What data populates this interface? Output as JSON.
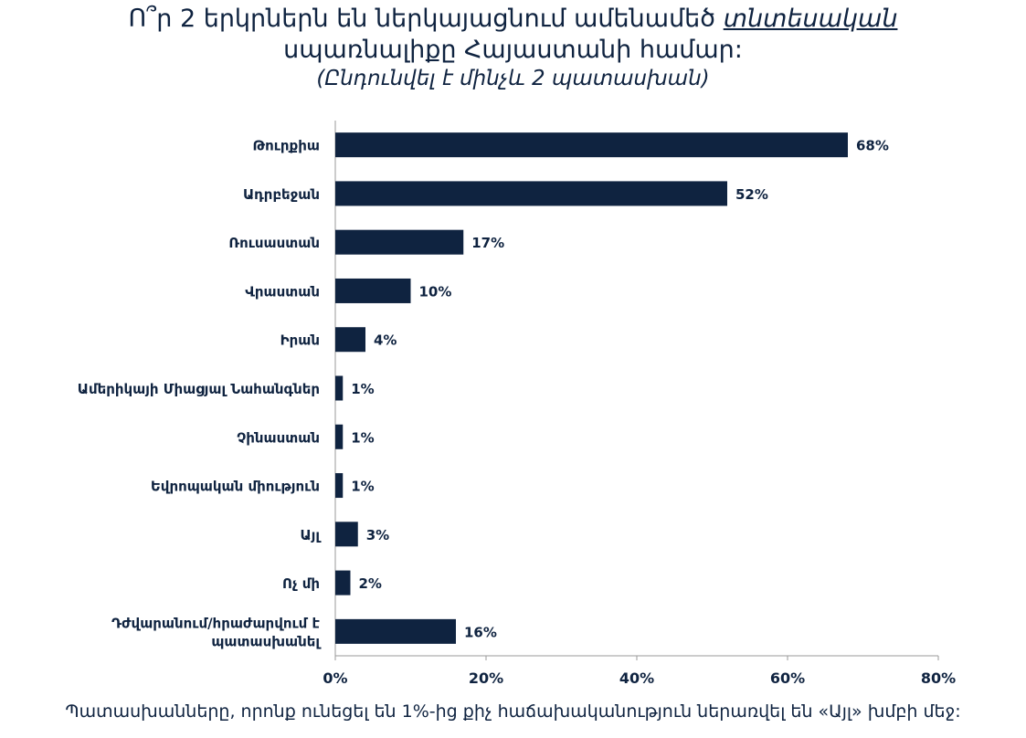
{
  "title": {
    "line1_before": "Ո՞ր 2 երկրներն են ներկայացնում ամենամեծ ",
    "line1_emphasis": "տնտեսական",
    "line2": "սպառնալիքը Հայաստանի համար:",
    "subtitle": "(Ընդունվել է մինչև  2 պատասխան)"
  },
  "footnote": "Պատասխանները, որոնք ունեցել են 1%-ից քիչ հաճախականություն ներառվել են «Այլ» խմբի մեջ:",
  "colors": {
    "bar": "#0f2340",
    "text": "#0f2340",
    "axis": "#9a9a9a"
  },
  "chart_data": {
    "type": "bar",
    "orientation": "horizontal",
    "categories": [
      "Թուրքիա",
      "Ադրբեջան",
      "Ռուսաստան",
      "Վրաստան",
      "Իրան",
      "Ամերիկայի Միացյալ Նահանգներ",
      "Չինաստան",
      "Եվրոպական միություն",
      "Այլ",
      "Ոչ մի",
      "Դժվարանում/հրաժարվում է պատասխանել"
    ],
    "values": [
      68,
      52,
      17,
      10,
      4,
      1,
      1,
      1,
      3,
      2,
      16
    ],
    "value_labels": [
      "68%",
      "52%",
      "17%",
      "10%",
      "4%",
      "1%",
      "1%",
      "1%",
      "3%",
      "2%",
      "16%"
    ],
    "xlim": [
      0,
      80
    ],
    "xticks": [
      0,
      20,
      40,
      60,
      80
    ],
    "xtick_labels": [
      "0%",
      "20%",
      "40%",
      "60%",
      "80%"
    ],
    "grid": false,
    "legend": "none"
  }
}
